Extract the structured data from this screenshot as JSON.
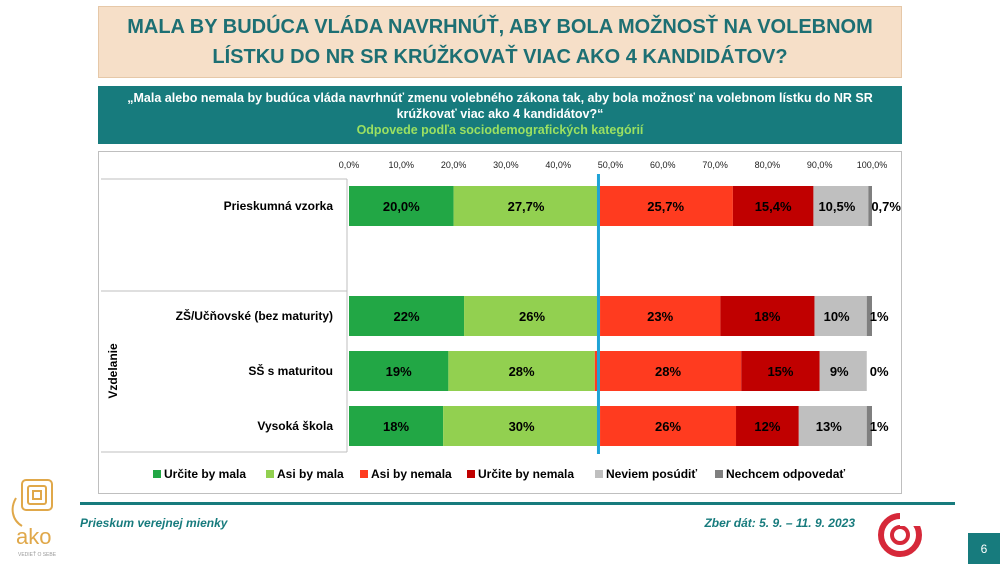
{
  "title": "MALA BY BUDÚCA VLÁDA NAVRHNÚŤ, ABY BOLA MOŽNOSŤ NA VOLEBNOM LÍSTKU DO NR SR KRÚŽKOVAŤ VIAC AKO 4 KANDIDÁTOV?",
  "question": "„Mala alebo nemala by budúca vláda navrhnúť zmenu volebného zákona tak, aby bola možnosť na volebnom lístku do NR SR krúžkovať viac ako 4 kandidátov?“",
  "subtitle": "Odpovede podľa sociodemografických kategórií",
  "chart_data": {
    "type": "bar",
    "orientation": "horizontal",
    "stacked": true,
    "x_ticks": [
      "0,0%",
      "10,0%",
      "20,0%",
      "30,0%",
      "40,0%",
      "50,0%",
      "60,0%",
      "70,0%",
      "80,0%",
      "90,0%",
      "100,0%"
    ],
    "xlim": [
      0,
      100
    ],
    "reference_line": 47.7,
    "group_label": "Vzdelanie",
    "categories": [
      "Prieskumná vzorka",
      "ZŠ/Učňovské (bez maturity)",
      "SŠ s maturitou",
      "Vysoká škola"
    ],
    "series": [
      {
        "name": "Určite by mala",
        "color": "#22a745",
        "values": [
          20.0,
          22,
          19,
          18
        ],
        "labels": [
          "20,0%",
          "22%",
          "19%",
          "18%"
        ]
      },
      {
        "name": "Asi by mala",
        "color": "#92d050",
        "values": [
          27.7,
          26,
          28,
          30
        ],
        "labels": [
          "27,7%",
          "26%",
          "28%",
          "30%"
        ]
      },
      {
        "name": "Asi by nemala",
        "color": "#ff3b1f",
        "values": [
          25.7,
          23,
          28,
          26
        ],
        "labels": [
          "25,7%",
          "23%",
          "28%",
          "26%"
        ]
      },
      {
        "name": "Určite by nemala",
        "color": "#c00000",
        "values": [
          15.4,
          18,
          15,
          12
        ],
        "labels": [
          "15,4%",
          "18%",
          "15%",
          "12%"
        ]
      },
      {
        "name": "Neviem posúdiť",
        "color": "#bfbfbf",
        "values": [
          10.5,
          10,
          9,
          13
        ],
        "labels": [
          "10,5%",
          "10%",
          "9%",
          "13%"
        ]
      },
      {
        "name": "Nechcem odpovedať",
        "color": "#7f7f7f",
        "values": [
          0.7,
          1,
          0,
          1
        ],
        "labels": [
          "0,7%",
          "1%",
          "0%",
          "1%"
        ]
      }
    ]
  },
  "footer": {
    "left": "Prieskum verejnej mienky",
    "right": "Zber dát: 5. 9. – 11. 9. 2023",
    "page": "6",
    "logo_text": "ako",
    "logo_tagline": "VEDIEŤ O SEBE"
  }
}
